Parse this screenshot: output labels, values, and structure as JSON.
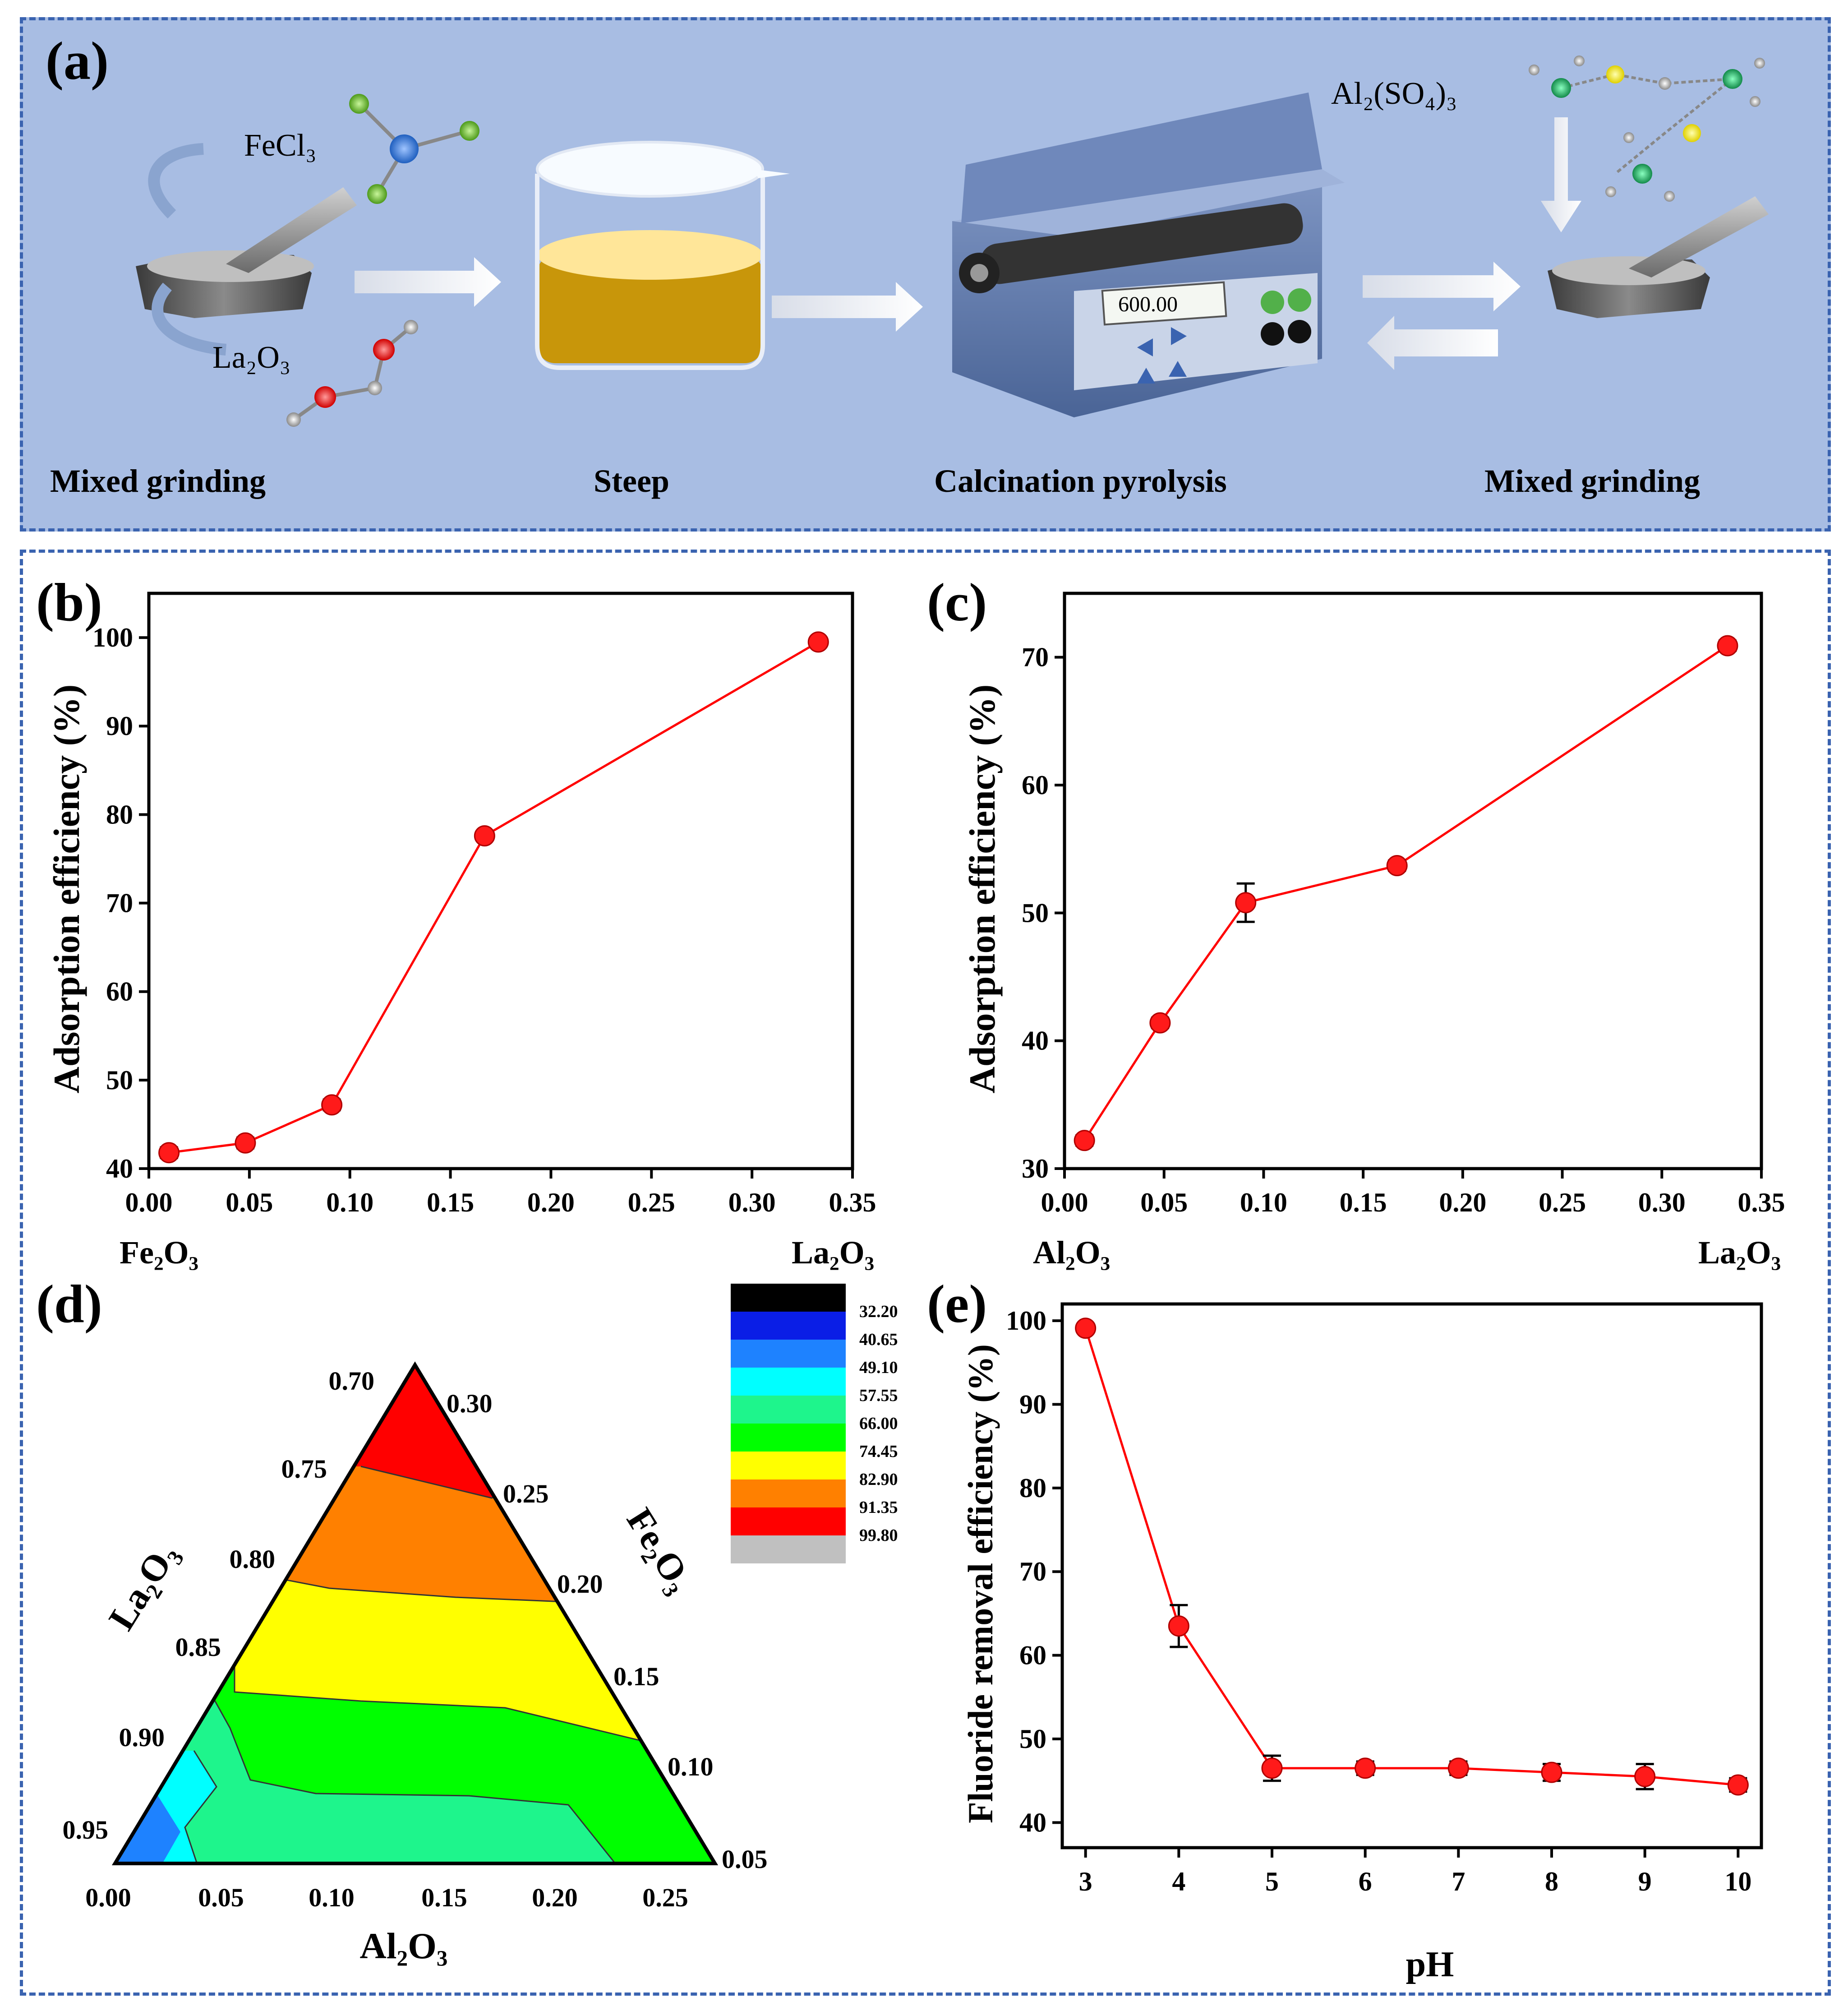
{
  "panel_a": {
    "label": "(a)",
    "steps": [
      "Mixed grinding",
      "Steep",
      "Calcination pyrolysis",
      "Mixed grinding"
    ],
    "reagents": {
      "fecl3": "FeCl₃",
      "la2o3": "La₂O₃",
      "al2so43": "Al₂(SO₄)₃"
    },
    "furnace_display": "600.00"
  },
  "chart_data": [
    {
      "id": "b",
      "type": "line",
      "label": "(b)",
      "xlabel": "",
      "ylabel": "Adsorption efficiency (%)",
      "x_left_label": "Fe₂O₃",
      "x_right_label": "La₂O₃",
      "xlim": [
        0.0,
        0.35
      ],
      "ylim": [
        40,
        105
      ],
      "xticks": [
        0.0,
        0.05,
        0.1,
        0.15,
        0.2,
        0.25,
        0.3,
        0.35
      ],
      "xtick_labels": [
        "0.00",
        "0.05",
        "0.10",
        "0.15",
        "0.20",
        "0.25",
        "0.30",
        "0.35"
      ],
      "yticks": [
        40,
        50,
        60,
        70,
        80,
        90,
        100
      ],
      "x": [
        0.01,
        0.048,
        0.091,
        0.167,
        0.333
      ],
      "y": [
        41.8,
        42.9,
        47.2,
        77.6,
        99.5
      ],
      "err": [
        0.6,
        0.6,
        0.6,
        0.4,
        0.4
      ]
    },
    {
      "id": "c",
      "type": "line",
      "label": "(c)",
      "xlabel": "",
      "ylabel": "Adsorption efficiency (%)",
      "x_left_label": "Al₂O₃",
      "x_right_label": "La₂O₃",
      "xlim": [
        0.0,
        0.35
      ],
      "ylim": [
        30,
        75
      ],
      "xticks": [
        0.0,
        0.05,
        0.1,
        0.15,
        0.2,
        0.25,
        0.3,
        0.35
      ],
      "xtick_labels": [
        "0.00",
        "0.05",
        "0.10",
        "0.15",
        "0.20",
        "0.25",
        "0.30",
        "0.35"
      ],
      "yticks": [
        30,
        40,
        50,
        60,
        70
      ],
      "x": [
        0.01,
        0.048,
        0.091,
        0.167,
        0.333
      ],
      "y": [
        32.2,
        41.4,
        50.8,
        53.7,
        70.9
      ],
      "err": [
        0.4,
        0.4,
        1.5,
        0.4,
        0.4
      ]
    },
    {
      "id": "d",
      "type": "heatmap",
      "label": "(d)",
      "subtype": "ternary contour",
      "axis_la2o3": "La₂O₃",
      "axis_fe2o3": "Fe₂O₃",
      "axis_al2o3": "Al₂O₃",
      "la2o3_ticks": [
        "0.70",
        "0.75",
        "0.80",
        "0.85",
        "0.90",
        "0.95"
      ],
      "fe2o3_ticks": [
        "0.30",
        "0.25",
        "0.20",
        "0.15",
        "0.10",
        "0.05"
      ],
      "al2o3_ticks": [
        "0.00",
        "0.05",
        "0.10",
        "0.15",
        "0.20",
        "0.25"
      ],
      "legend_levels": [
        "32.20",
        "40.65",
        "49.10",
        "57.55",
        "66.00",
        "74.45",
        "82.90",
        "91.35",
        "99.80"
      ],
      "legend_colors": [
        "#000000",
        "#0a1ee6",
        "#1e82ff",
        "#00ffff",
        "#1ef58c",
        "#00ff00",
        "#ffff00",
        "#ff8000",
        "#ff0000",
        "#c0c0c0"
      ]
    },
    {
      "id": "e",
      "type": "line",
      "label": "(e)",
      "xlabel": "pH",
      "ylabel": "Fluoride removal efficiency (%)",
      "xlim": [
        2.75,
        10.25
      ],
      "ylim": [
        37,
        102
      ],
      "xticks": [
        3,
        4,
        5,
        6,
        7,
        8,
        9,
        10
      ],
      "xtick_labels": [
        "3",
        "4",
        "5",
        "6",
        "7",
        "8",
        "9",
        "10"
      ],
      "yticks": [
        40,
        50,
        60,
        70,
        80,
        90,
        100
      ],
      "x": [
        3,
        4,
        5,
        6,
        7,
        8,
        9,
        10
      ],
      "y": [
        99.1,
        63.5,
        46.5,
        46.5,
        46.5,
        46.0,
        45.5,
        44.5
      ],
      "err": [
        0.5,
        2.5,
        1.5,
        0.8,
        0.8,
        1.0,
        1.5,
        0.8
      ]
    }
  ],
  "colors": {
    "line": "#ff0000",
    "point": "#ff1a1a",
    "frame": "#3a63b0",
    "panel_bg": "#a8bde3"
  }
}
